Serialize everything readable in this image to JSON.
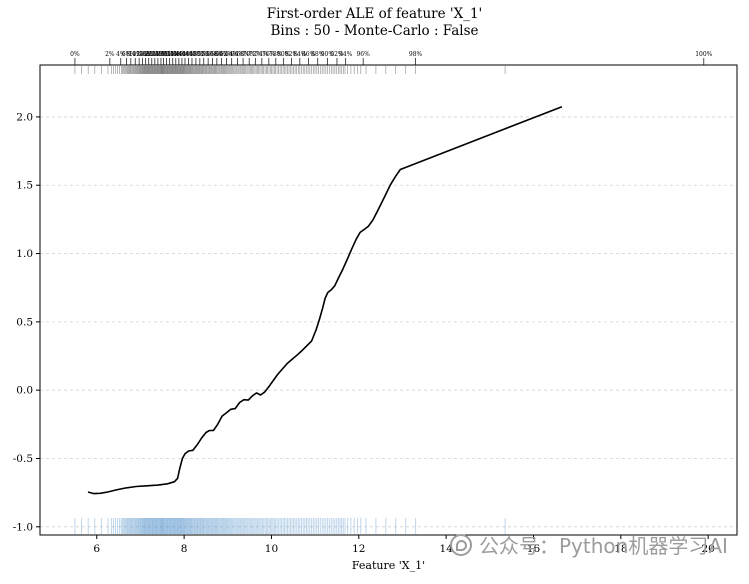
{
  "watermark": {
    "text": "公众号：Python机器学习AI"
  },
  "chart_data": {
    "type": "line",
    "title": "First-order ALE of feature 'X_1'",
    "subtitle": "Bins : 50 - Monte-Carlo : False",
    "xlabel": "Feature 'X_1'",
    "ylabel": "",
    "xlim": [
      4.7,
      20.66
    ],
    "ylim": [
      -1.06,
      2.38
    ],
    "xticks": [
      6,
      8,
      10,
      12,
      14,
      16,
      18,
      20
    ],
    "yticks": [
      -1.0,
      -0.5,
      0.0,
      0.5,
      1.0,
      1.5,
      2.0
    ],
    "ytick_labels": [
      "-1.0",
      "-0.5",
      "0.0",
      "0.5",
      "1.0",
      "1.5",
      "2.0"
    ],
    "grid": {
      "axis": "y",
      "style": "dashed",
      "color": "#c9c9c9"
    },
    "line_color": "#000000",
    "rug": {
      "color": "#2f7bbf",
      "count": 260,
      "max_percentile": 98,
      "outliers": [
        15.35
      ]
    },
    "top_axis": {
      "percent_step": 2,
      "quantiles": [
        5.5,
        6.3,
        6.55,
        6.68,
        6.78,
        6.88,
        6.97,
        7.05,
        7.12,
        7.19,
        7.26,
        7.33,
        7.4,
        7.47,
        7.53,
        7.6,
        7.67,
        7.74,
        7.81,
        7.88,
        7.95,
        8.02,
        8.1,
        8.18,
        8.27,
        8.36,
        8.45,
        8.55,
        8.65,
        8.75,
        8.86,
        8.97,
        9.09,
        9.22,
        9.35,
        9.49,
        9.63,
        9.78,
        9.94,
        10.1,
        10.28,
        10.46,
        10.65,
        10.85,
        11.06,
        11.28,
        11.5,
        11.7,
        12.1,
        13.3,
        19.9
      ]
    },
    "series": [
      {
        "name": "ALE",
        "points": [
          [
            5.8,
            -0.745
          ],
          [
            5.93,
            -0.757
          ],
          [
            6.08,
            -0.755
          ],
          [
            6.25,
            -0.745
          ],
          [
            6.45,
            -0.73
          ],
          [
            6.67,
            -0.715
          ],
          [
            6.9,
            -0.705
          ],
          [
            7.15,
            -0.7
          ],
          [
            7.4,
            -0.695
          ],
          [
            7.62,
            -0.685
          ],
          [
            7.78,
            -0.67
          ],
          [
            7.85,
            -0.645
          ],
          [
            7.9,
            -0.575
          ],
          [
            7.96,
            -0.5
          ],
          [
            8.02,
            -0.465
          ],
          [
            8.1,
            -0.445
          ],
          [
            8.2,
            -0.44
          ],
          [
            8.3,
            -0.4
          ],
          [
            8.4,
            -0.35
          ],
          [
            8.5,
            -0.31
          ],
          [
            8.58,
            -0.295
          ],
          [
            8.67,
            -0.295
          ],
          [
            8.77,
            -0.25
          ],
          [
            8.87,
            -0.19
          ],
          [
            8.97,
            -0.165
          ],
          [
            9.07,
            -0.14
          ],
          [
            9.17,
            -0.135
          ],
          [
            9.27,
            -0.09
          ],
          [
            9.37,
            -0.07
          ],
          [
            9.47,
            -0.073
          ],
          [
            9.57,
            -0.04
          ],
          [
            9.66,
            -0.02
          ],
          [
            9.75,
            -0.035
          ],
          [
            9.84,
            -0.015
          ],
          [
            9.94,
            0.025
          ],
          [
            10.04,
            0.07
          ],
          [
            10.14,
            0.115
          ],
          [
            10.25,
            0.155
          ],
          [
            10.36,
            0.195
          ],
          [
            10.47,
            0.225
          ],
          [
            10.58,
            0.255
          ],
          [
            10.7,
            0.29
          ],
          [
            10.81,
            0.325
          ],
          [
            10.92,
            0.36
          ],
          [
            11.02,
            0.44
          ],
          [
            11.1,
            0.52
          ],
          [
            11.17,
            0.6
          ],
          [
            11.23,
            0.675
          ],
          [
            11.29,
            0.715
          ],
          [
            11.37,
            0.735
          ],
          [
            11.45,
            0.765
          ],
          [
            11.54,
            0.825
          ],
          [
            11.64,
            0.89
          ],
          [
            11.74,
            0.96
          ],
          [
            11.84,
            1.035
          ],
          [
            11.94,
            1.105
          ],
          [
            12.03,
            1.155
          ],
          [
            12.12,
            1.175
          ],
          [
            12.22,
            1.2
          ],
          [
            12.32,
            1.245
          ],
          [
            12.42,
            1.305
          ],
          [
            12.52,
            1.37
          ],
          [
            12.62,
            1.435
          ],
          [
            12.72,
            1.5
          ],
          [
            12.84,
            1.565
          ],
          [
            12.95,
            1.615
          ],
          [
            16.65,
            2.075
          ]
        ]
      }
    ]
  }
}
